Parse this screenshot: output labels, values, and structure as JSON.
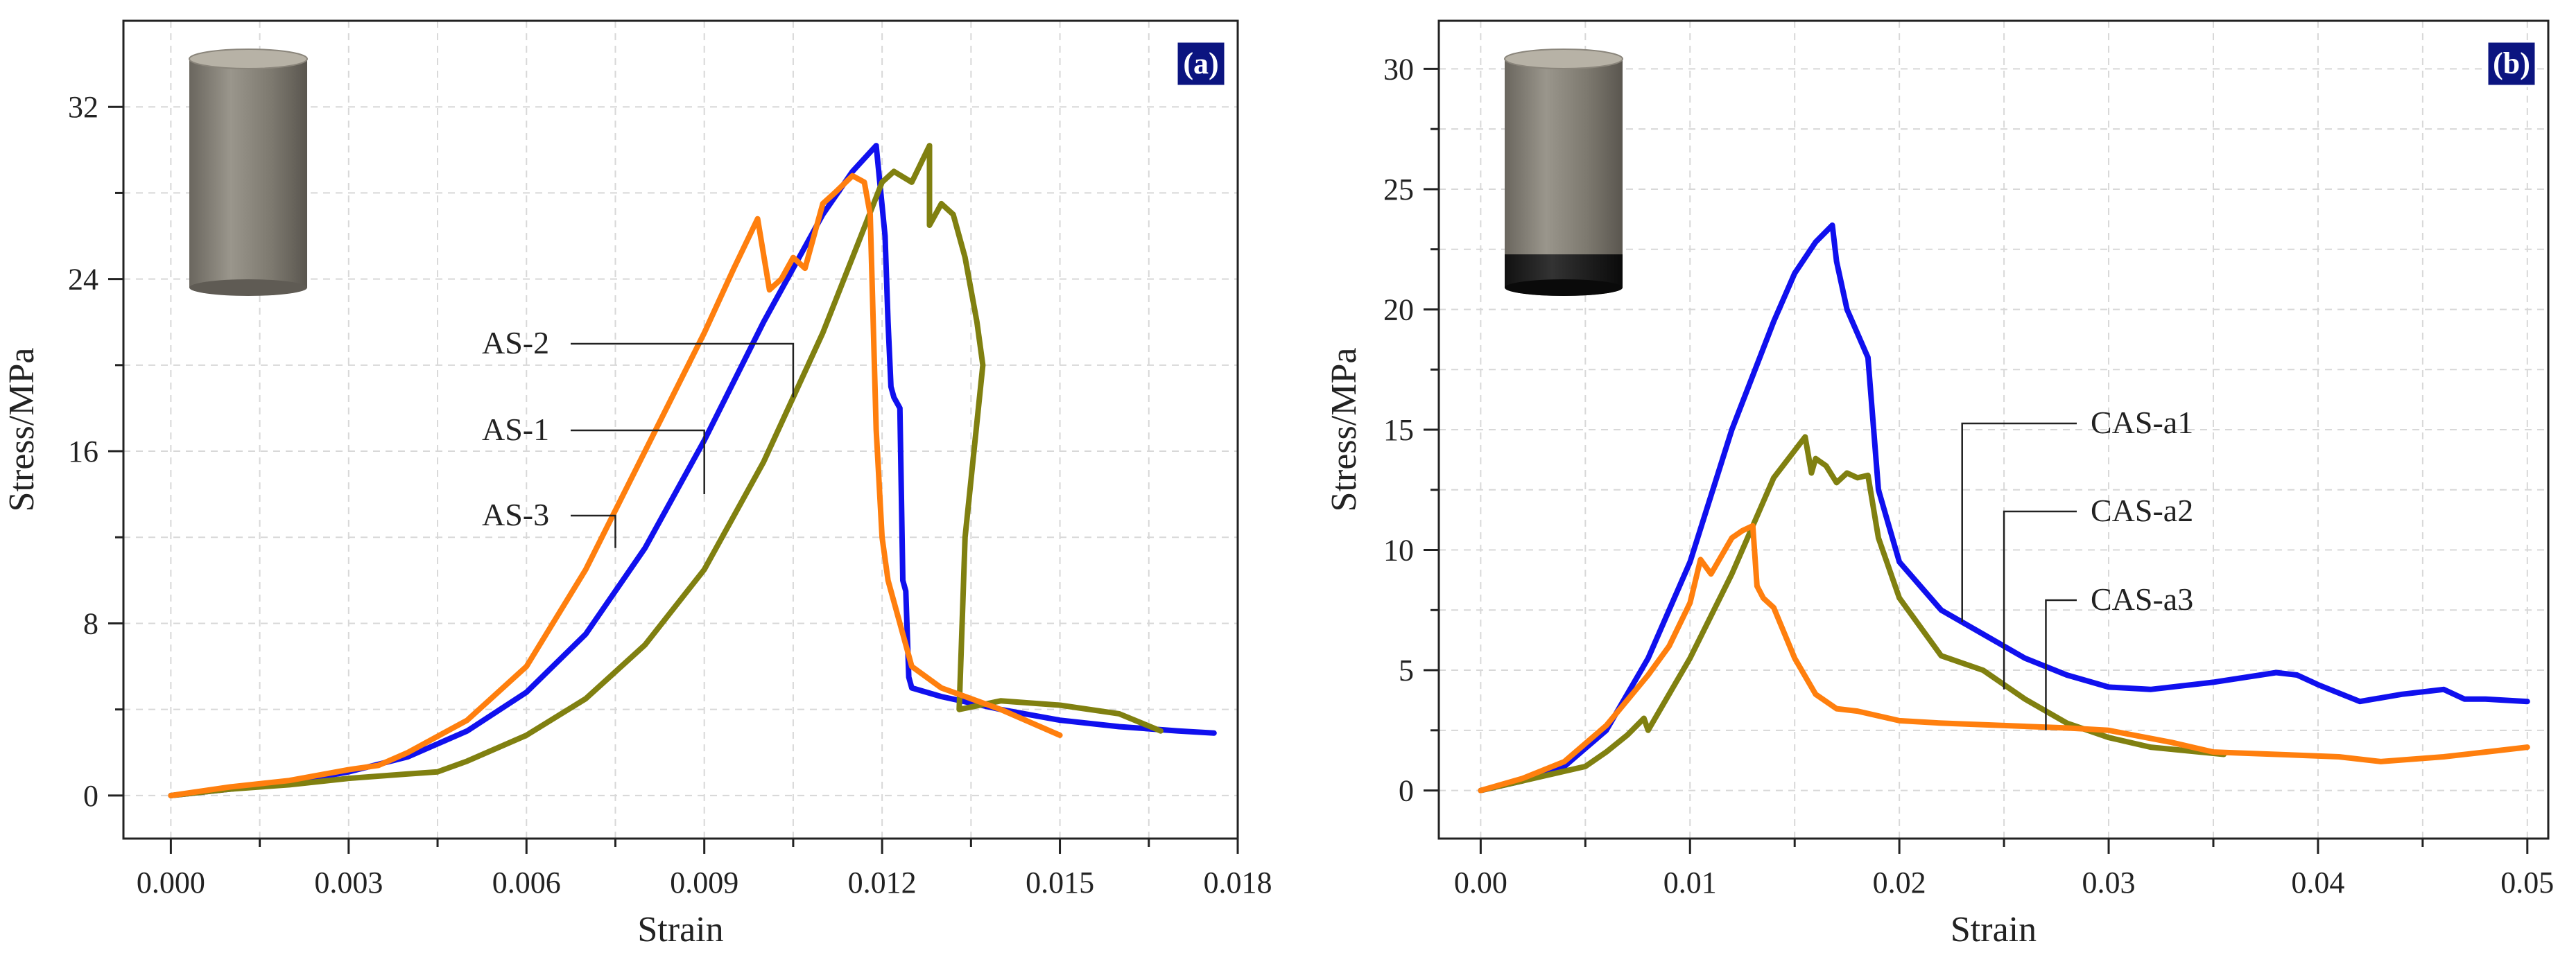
{
  "chart_data": [
    {
      "type": "line",
      "panel_label": "(a)",
      "xlabel": "Strain",
      "ylabel": "Stress/MPa",
      "xlim": [
        -0.0008,
        0.018
      ],
      "ylim": [
        -2,
        36
      ],
      "xticks": [
        0.0,
        0.003,
        0.006,
        0.009,
        0.012,
        0.015,
        0.018
      ],
      "xtick_labels": [
        "0.000",
        "0.003",
        "0.006",
        "0.009",
        "0.012",
        "0.015",
        "0.018"
      ],
      "yticks": [
        0,
        8,
        16,
        24,
        32
      ],
      "ytick_labels": [
        "0",
        "8",
        "16",
        "24",
        "32"
      ],
      "grid": true,
      "icon": "plain-cylinder",
      "series": [
        {
          "name": "AS-1",
          "color": "#1010ee",
          "x": [
            0,
            0.001,
            0.002,
            0.003,
            0.004,
            0.005,
            0.006,
            0.007,
            0.008,
            0.009,
            0.01,
            0.011,
            0.0115,
            0.0119,
            0.01205,
            0.0121,
            0.01215,
            0.0122,
            0.0123,
            0.01235,
            0.0124,
            0.01245,
            0.0125,
            0.013,
            0.014,
            0.015,
            0.016,
            0.017,
            0.0176
          ],
          "y": [
            0,
            0.3,
            0.6,
            1.1,
            1.8,
            3.0,
            4.8,
            7.5,
            11.5,
            16.5,
            22.0,
            27.0,
            29.0,
            30.2,
            26.0,
            22.0,
            19.0,
            18.5,
            18.0,
            10.0,
            9.5,
            5.5,
            5.0,
            4.6,
            4.0,
            3.5,
            3.2,
            3.0,
            2.9
          ]
        },
        {
          "name": "AS-2",
          "color": "#808010",
          "x": [
            0,
            0.001,
            0.002,
            0.003,
            0.004,
            0.0045,
            0.005,
            0.006,
            0.007,
            0.008,
            0.009,
            0.01,
            0.011,
            0.0115,
            0.012,
            0.0122,
            0.0125,
            0.0128,
            0.0128,
            0.013,
            0.0132,
            0.0134,
            0.0136,
            0.0137,
            0.0134,
            0.0133,
            0.014,
            0.015,
            0.016,
            0.0167
          ],
          "y": [
            0,
            0.3,
            0.5,
            0.8,
            1.0,
            1.1,
            1.6,
            2.8,
            4.5,
            7.0,
            10.5,
            15.5,
            21.5,
            25.0,
            28.5,
            29.0,
            28.5,
            30.2,
            26.5,
            27.5,
            27.0,
            25.0,
            22.0,
            20.0,
            12.0,
            4.0,
            4.4,
            4.2,
            3.8,
            3.0
          ]
        },
        {
          "name": "AS-3",
          "color": "#ff7f0e",
          "x": [
            0,
            0.001,
            0.002,
            0.003,
            0.0035,
            0.004,
            0.005,
            0.006,
            0.007,
            0.008,
            0.009,
            0.0095,
            0.0099,
            0.0101,
            0.0103,
            0.0105,
            0.0107,
            0.011,
            0.0112,
            0.0115,
            0.0117,
            0.0118,
            0.01185,
            0.0119,
            0.012,
            0.0121,
            0.0125,
            0.013,
            0.014,
            0.015
          ],
          "y": [
            0,
            0.4,
            0.7,
            1.2,
            1.4,
            2.0,
            3.5,
            6.0,
            10.5,
            16.0,
            21.5,
            24.5,
            26.8,
            23.5,
            24.0,
            25.0,
            24.5,
            27.5,
            28.0,
            28.8,
            28.5,
            27.0,
            22.0,
            17.0,
            12.0,
            10.0,
            6.0,
            5.0,
            4.0,
            2.8
          ]
        }
      ],
      "annotations": [
        {
          "text": "AS-2",
          "series": "AS-2",
          "at_x": 0.0105,
          "at_y": 18.5
        },
        {
          "text": "AS-1",
          "series": "AS-1",
          "at_x": 0.009,
          "at_y": 14.0
        },
        {
          "text": "AS-3",
          "series": "AS-3",
          "at_x": 0.0075,
          "at_y": 11.5
        }
      ]
    },
    {
      "type": "line",
      "panel_label": "(b)",
      "xlabel": "Strain",
      "ylabel": "Stress/MPa",
      "xlim": [
        -0.002,
        0.051
      ],
      "ylim": [
        -2,
        32
      ],
      "xticks": [
        0.0,
        0.01,
        0.02,
        0.03,
        0.04,
        0.05
      ],
      "xtick_labels": [
        "0.00",
        "0.01",
        "0.02",
        "0.03",
        "0.04",
        "0.05"
      ],
      "yticks": [
        0,
        5,
        10,
        15,
        20,
        25,
        30
      ],
      "ytick_labels": [
        "0",
        "5",
        "10",
        "15",
        "20",
        "25",
        "30"
      ],
      "grid": true,
      "icon": "coated-cylinder",
      "series": [
        {
          "name": "CAS-a1",
          "color": "#1010ee",
          "x": [
            0,
            0.002,
            0.004,
            0.006,
            0.008,
            0.01,
            0.012,
            0.014,
            0.015,
            0.016,
            0.0168,
            0.017,
            0.0175,
            0.018,
            0.0185,
            0.019,
            0.02,
            0.022,
            0.024,
            0.026,
            0.028,
            0.03,
            0.032,
            0.035,
            0.038,
            0.039,
            0.04,
            0.042,
            0.044,
            0.046,
            0.047,
            0.048,
            0.05
          ],
          "y": [
            0,
            0.4,
            1.0,
            2.5,
            5.5,
            9.5,
            15.0,
            19.5,
            21.5,
            22.8,
            23.5,
            22.0,
            20.0,
            19.0,
            18.0,
            12.5,
            9.5,
            7.5,
            6.5,
            5.5,
            4.8,
            4.3,
            4.2,
            4.5,
            4.9,
            4.8,
            4.4,
            3.7,
            4.0,
            4.2,
            3.8,
            3.8,
            3.7
          ]
        },
        {
          "name": "CAS-a2",
          "color": "#808010",
          "x": [
            0,
            0.002,
            0.004,
            0.005,
            0.006,
            0.007,
            0.0078,
            0.008,
            0.01,
            0.012,
            0.014,
            0.0155,
            0.0158,
            0.016,
            0.0165,
            0.017,
            0.0175,
            0.018,
            0.0185,
            0.019,
            0.02,
            0.022,
            0.024,
            0.026,
            0.028,
            0.03,
            0.032,
            0.0355
          ],
          "y": [
            0,
            0.4,
            0.8,
            1.0,
            1.6,
            2.3,
            3.0,
            2.5,
            5.5,
            9.0,
            13.0,
            14.7,
            13.2,
            13.8,
            13.5,
            12.8,
            13.2,
            13.0,
            13.1,
            10.5,
            8.0,
            5.6,
            5.0,
            3.8,
            2.8,
            2.2,
            1.8,
            1.5
          ]
        },
        {
          "name": "CAS-a3",
          "color": "#ff7f0e",
          "x": [
            0,
            0.002,
            0.004,
            0.006,
            0.008,
            0.009,
            0.01,
            0.0105,
            0.011,
            0.012,
            0.0125,
            0.013,
            0.0132,
            0.0135,
            0.014,
            0.015,
            0.016,
            0.017,
            0.018,
            0.02,
            0.022,
            0.025,
            0.028,
            0.03,
            0.033,
            0.035,
            0.038,
            0.041,
            0.043,
            0.046,
            0.048,
            0.05
          ],
          "y": [
            0,
            0.5,
            1.2,
            2.7,
            4.8,
            6.0,
            7.8,
            9.6,
            9.0,
            10.5,
            10.8,
            11.0,
            8.5,
            8.0,
            7.6,
            5.5,
            4.0,
            3.4,
            3.3,
            2.9,
            2.8,
            2.7,
            2.6,
            2.5,
            2.0,
            1.6,
            1.5,
            1.4,
            1.2,
            1.4,
            1.6,
            1.8
          ]
        }
      ],
      "annotations": [
        {
          "text": "CAS-a1",
          "series": "CAS-a1",
          "at_x": 0.023,
          "at_y": 7.0
        },
        {
          "text": "CAS-a2",
          "series": "CAS-a2",
          "at_x": 0.025,
          "at_y": 4.2
        },
        {
          "text": "CAS-a3",
          "series": "CAS-a3",
          "at_x": 0.027,
          "at_y": 2.5
        }
      ]
    }
  ]
}
